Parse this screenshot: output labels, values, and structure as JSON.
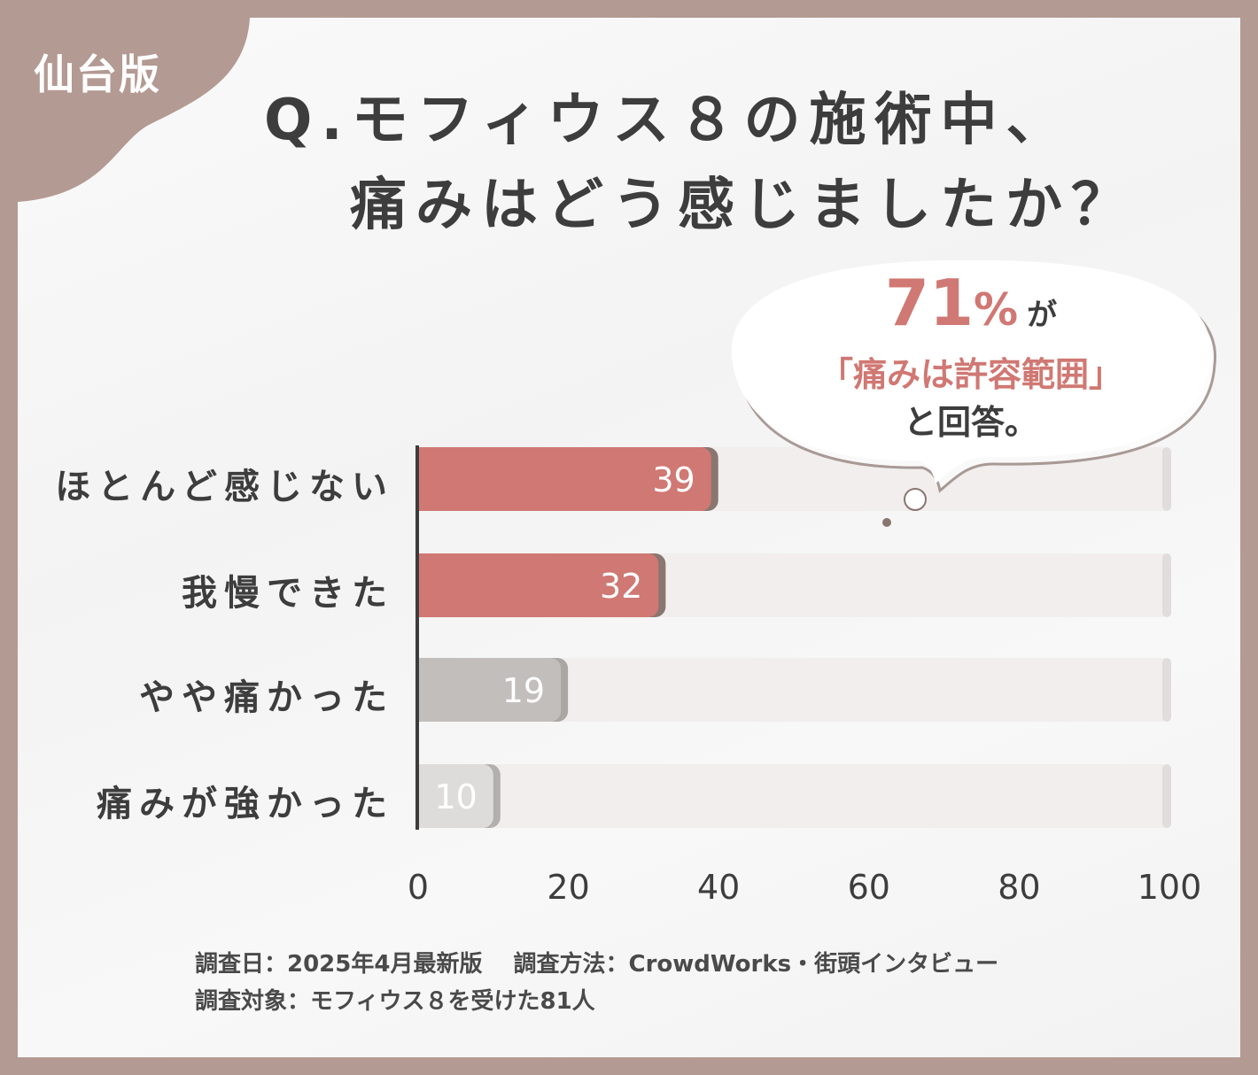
{
  "badge": "仙台版",
  "title": {
    "line1": "Q.モフィウス８の施術中、",
    "line2": "痛みはどう感じましたか？"
  },
  "callout": {
    "percent": "71",
    "percent_sign": "%",
    "particle": "が",
    "line2": "「痛みは許容範囲」",
    "line3": "と回答。"
  },
  "chart_data": {
    "type": "bar",
    "orientation": "horizontal",
    "categories": [
      "ほとんど感じない",
      "我慢できた",
      "やや痛かった",
      "痛みが強かった"
    ],
    "values": [
      39,
      32,
      19,
      10
    ],
    "value_labels": [
      "39",
      "32",
      "19",
      "10"
    ],
    "xlim": [
      0,
      100
    ],
    "xticks": [
      "0",
      "20",
      "40",
      "60",
      "80",
      "100"
    ],
    "colors": [
      "#d07873",
      "#d07873",
      "#c2bebc",
      "#dedcdb"
    ],
    "track_color": "#f1eeed",
    "grid": false
  },
  "footer": {
    "line1": "調査日：2025年4月最新版　 調査方法：CrowdWorks・街頭インタビュー",
    "line2": "調査対象：モフィウス８を受けた81人"
  }
}
